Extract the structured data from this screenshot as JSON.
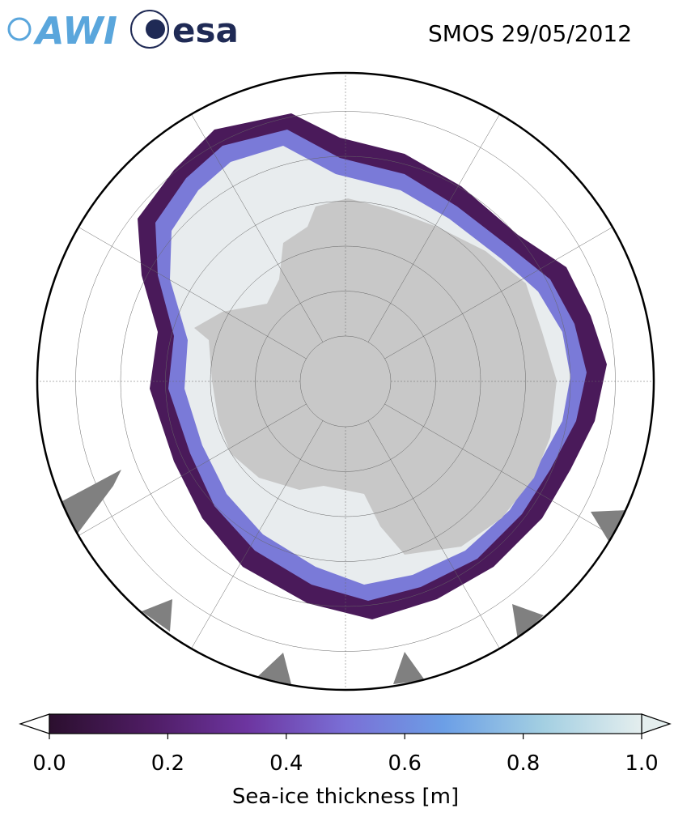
{
  "header": {
    "title": "SMOS 29/05/2012",
    "logos": [
      "AWI",
      "esa"
    ]
  },
  "colorbar": {
    "label": "Sea-ice thickness [m]",
    "lim": [
      0,
      1
    ],
    "ticks": [
      {
        "value": 0,
        "label": "0.0"
      },
      {
        "value": 0.2,
        "label": "0.2"
      },
      {
        "value": 0.4,
        "label": "0.4"
      },
      {
        "value": 0.6,
        "label": "0.6"
      },
      {
        "value": 0.8,
        "label": "0.8"
      },
      {
        "value": 1,
        "label": "1.0"
      }
    ],
    "colors": [
      "#2b0f2e",
      "#4e1c63",
      "#6d35a0",
      "#7a6fd6",
      "#6c9fe6",
      "#a3cfe2",
      "#e4eeee"
    ]
  }
}
